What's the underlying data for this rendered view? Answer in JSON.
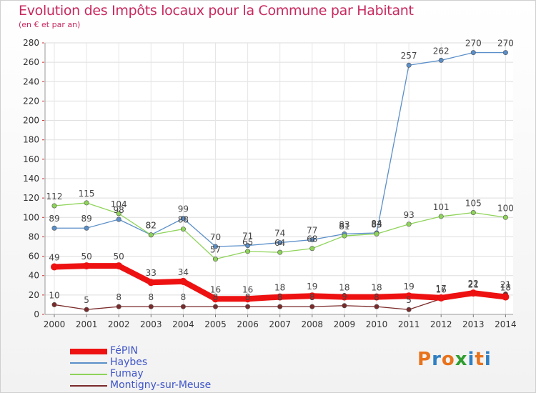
{
  "header": {
    "title": "Evolution des Impôts locaux pour la Commune par Habitant",
    "subtitle": "(en € et par an)"
  },
  "logo": {
    "text": "Proxiti",
    "colors": [
      "#e8731c",
      "#2f7fc2",
      "#e8731c",
      "#2f9d2f",
      "#2f7fc2",
      "#e8731c",
      "#2f7fc2"
    ]
  },
  "chart_data": {
    "type": "line",
    "x": [
      "2000",
      "2001",
      "2002",
      "2003",
      "2004",
      "2005",
      "2006",
      "2007",
      "2008",
      "2009",
      "2010",
      "2011",
      "2012",
      "2013",
      "2014"
    ],
    "ylim": [
      0,
      280
    ],
    "yticks": [
      0,
      20,
      40,
      60,
      80,
      100,
      120,
      140,
      160,
      180,
      200,
      220,
      240,
      260,
      280
    ],
    "grid": true,
    "legend_position": "bottom-left",
    "series": [
      {
        "name": "Haybes",
        "color": "#5b8fc9",
        "values": [
          89,
          89,
          98,
          82,
          99,
          70,
          71,
          74,
          77,
          83,
          84,
          257,
          262,
          270,
          270
        ],
        "labels": [
          "89",
          "89",
          "98",
          "82",
          "99",
          "70",
          "71",
          "74",
          "77",
          "83",
          "84",
          "257",
          "262",
          "270",
          "270"
        ]
      },
      {
        "name": "Fumay",
        "color": "#8fd45a",
        "values": [
          112,
          115,
          104,
          82,
          88,
          57,
          65,
          64,
          68,
          81,
          83,
          93,
          101,
          105,
          100
        ],
        "labels": [
          "112",
          "115",
          "104",
          "82",
          "88",
          "57",
          "65",
          "64",
          "68",
          "81",
          "83",
          "93",
          "101",
          "105",
          "100"
        ]
      },
      {
        "name": "Montigny-sur-Meuse",
        "color": "#7a2a2a",
        "values": [
          10,
          5,
          8,
          8,
          8,
          8,
          8,
          8,
          8,
          9,
          8,
          5,
          16,
          21,
          21
        ],
        "labels": [
          "10",
          "5",
          "8",
          "8",
          "8",
          "8",
          "8",
          "8",
          "8",
          "9",
          "8",
          "5",
          "16",
          "21",
          "21"
        ]
      },
      {
        "name": "FéPIN",
        "color": "#ee1111",
        "values": [
          49,
          50,
          50,
          33,
          34,
          16,
          16,
          18,
          19,
          18,
          18,
          19,
          17,
          22,
          18
        ],
        "labels": [
          "49",
          "50",
          "50",
          "33",
          "34",
          "16",
          "16",
          "18",
          "19",
          "18",
          "18",
          "19",
          "17",
          "22",
          "18"
        ]
      }
    ]
  },
  "legend": [
    {
      "label": "FéPIN",
      "color": "#ee1111",
      "weight": 8
    },
    {
      "label": "Haybes",
      "color": "#5b8fc9",
      "weight": 2
    },
    {
      "label": "Fumay",
      "color": "#8fd45a",
      "weight": 2
    },
    {
      "label": "Montigny-sur-Meuse",
      "color": "#7a2a2a",
      "weight": 2
    }
  ]
}
